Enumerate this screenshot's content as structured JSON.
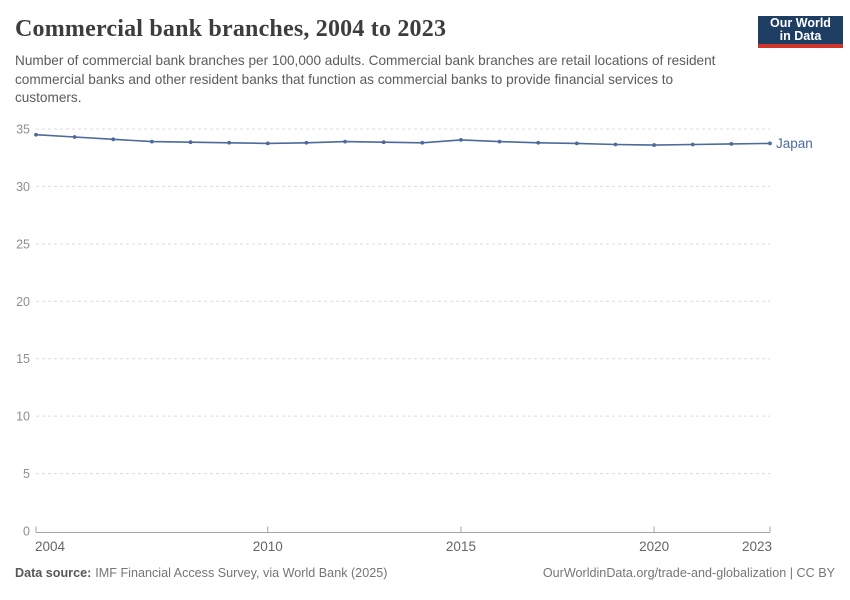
{
  "header": {
    "title": "Commercial bank branches, 2004 to 2023",
    "subtitle": "Number of commercial bank branches per 100,000 adults. Commercial bank branches are retail locations of resident commercial banks and other resident banks that function as commercial banks to provide financial services to customers.",
    "logo": {
      "line1": "Our World",
      "line2": "in Data",
      "bg_color": "#1d3d63",
      "accent_color": "#cf342b"
    }
  },
  "chart_data": {
    "type": "line",
    "title": "Commercial bank branches, 2004 to 2023",
    "ylabel": "",
    "xlabel": "",
    "xlim": [
      2004,
      2023
    ],
    "ylim": [
      0,
      35
    ],
    "yticks": [
      0,
      5,
      10,
      15,
      20,
      25,
      30,
      35
    ],
    "xticks": [
      2004,
      2010,
      2015,
      2020,
      2023
    ],
    "grid": "horizontal-dashed",
    "legend_position": "end-of-line-label",
    "x": [
      2004,
      2005,
      2006,
      2007,
      2008,
      2009,
      2010,
      2011,
      2012,
      2013,
      2014,
      2015,
      2016,
      2017,
      2018,
      2019,
      2020,
      2021,
      2022,
      2023
    ],
    "series": [
      {
        "name": "Japan",
        "color": "#4c6a9c",
        "values": [
          34.5,
          34.3,
          34.1,
          33.9,
          33.85,
          33.8,
          33.75,
          33.8,
          33.9,
          33.85,
          33.8,
          34.05,
          33.9,
          33.8,
          33.75,
          33.65,
          33.6,
          33.65,
          33.7,
          33.75
        ]
      }
    ],
    "colors": {
      "gridline": "#dcdcdc",
      "axis": "#a3a3a3",
      "y_tick_label": "#8f8f8f",
      "x_tick_label": "#666666"
    }
  },
  "footer": {
    "datasource_label": "Data source:",
    "datasource_value": "IMF Financial Access Survey, via World Bank (2025)",
    "credit": "OurWorldinData.org/trade-and-globalization | CC BY"
  }
}
